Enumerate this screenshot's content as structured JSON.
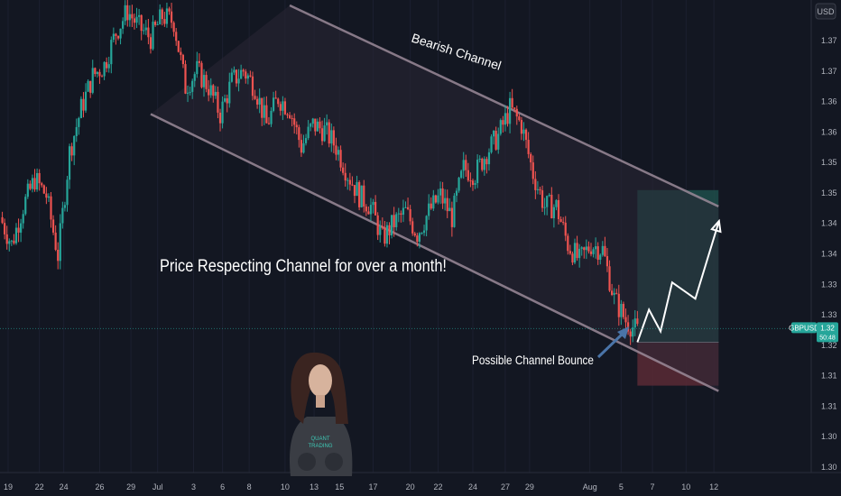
{
  "currency_label": "USD",
  "annotations": {
    "channel_label": "Bearish Channel",
    "headline": "Price Respecting Channel for over a month!",
    "bounce_label": "Possible Channel Bounce"
  },
  "price_badge": {
    "symbol": "GBPUSD",
    "price": "1.32",
    "countdown": "50:48"
  },
  "avatar": {
    "text_line1": "QUANT",
    "text_line2": "TRADING"
  },
  "colors": {
    "background": "#131722",
    "candle_up": "#26a69a",
    "candle_down": "#ef5350",
    "channel_line": "#9b8a99",
    "target_zone": "#1f4e4a",
    "stop_zone": "#5a2a35",
    "projection": "#ffffff",
    "arrow": "#4a74a8"
  },
  "chart_data": {
    "type": "candlestick",
    "symbol": "GBPUSD",
    "y_axis": {
      "labels": [
        "1.37",
        "1.37",
        "1.36",
        "1.36",
        "1.35",
        "1.35",
        "1.34",
        "1.34",
        "1.33",
        "1.33",
        "1.32",
        "1.31",
        "1.31",
        "1.30",
        "1.30"
      ],
      "range": [
        1.297,
        1.384
      ]
    },
    "x_axis": {
      "labels": [
        "19",
        "22",
        "24",
        "26",
        "29",
        "Jul",
        "3",
        "6",
        "8",
        "10",
        "13",
        "15",
        "17",
        "20",
        "22",
        "24",
        "27",
        "29",
        "Aug",
        "5",
        "7",
        "10",
        "12"
      ],
      "range": [
        0,
        70
      ]
    },
    "price_path": [
      [
        0,
        1.344
      ],
      [
        1,
        1.339
      ],
      [
        2,
        1.346
      ],
      [
        3,
        1.351
      ],
      [
        4,
        1.348
      ],
      [
        5,
        1.337
      ],
      [
        6,
        1.356
      ],
      [
        7,
        1.364
      ],
      [
        8,
        1.37
      ],
      [
        9,
        1.372
      ],
      [
        10,
        1.378
      ],
      [
        11,
        1.382
      ],
      [
        12,
        1.379
      ],
      [
        13,
        1.377
      ],
      [
        14,
        1.381
      ],
      [
        15,
        1.38
      ],
      [
        16,
        1.368
      ],
      [
        17,
        1.371
      ],
      [
        18,
        1.368
      ],
      [
        19,
        1.363
      ],
      [
        20,
        1.369
      ],
      [
        21,
        1.371
      ],
      [
        22,
        1.368
      ],
      [
        23,
        1.361
      ],
      [
        24,
        1.366
      ],
      [
        25,
        1.364
      ],
      [
        26,
        1.357
      ],
      [
        27,
        1.361
      ],
      [
        28,
        1.36
      ],
      [
        29,
        1.357
      ],
      [
        30,
        1.352
      ],
      [
        31,
        1.348
      ],
      [
        32,
        1.346
      ],
      [
        33,
        1.34
      ],
      [
        34,
        1.343
      ],
      [
        35,
        1.345
      ],
      [
        36,
        1.341
      ],
      [
        37,
        1.345
      ],
      [
        38,
        1.348
      ],
      [
        39,
        1.344
      ],
      [
        40,
        1.353
      ],
      [
        41,
        1.352
      ],
      [
        42,
        1.356
      ],
      [
        43,
        1.359
      ],
      [
        44,
        1.364
      ],
      [
        45,
        1.361
      ],
      [
        46,
        1.352
      ],
      [
        47,
        1.346
      ],
      [
        48,
        1.346
      ],
      [
        49,
        1.339
      ],
      [
        50,
        1.336
      ],
      [
        51,
        1.339
      ],
      [
        52,
        1.338
      ],
      [
        53,
        1.329
      ],
      [
        54,
        1.325
      ],
      [
        55,
        1.323
      ]
    ],
    "channel": {
      "upper": {
        "from": [
          25,
          1.383
        ],
        "to": [
          62,
          1.346
        ]
      },
      "lower": {
        "from": [
          13,
          1.363
        ],
        "to": [
          62,
          1.312
        ]
      }
    },
    "position": {
      "x_from": 55,
      "x_to": 62,
      "entry": 1.321,
      "target": 1.349,
      "stop": 1.313
    },
    "projection": [
      [
        55,
        1.321
      ],
      [
        56,
        1.327
      ],
      [
        57,
        1.323
      ],
      [
        58,
        1.332
      ],
      [
        60,
        1.329
      ],
      [
        62,
        1.343
      ]
    ],
    "current_price": 1.3235
  }
}
